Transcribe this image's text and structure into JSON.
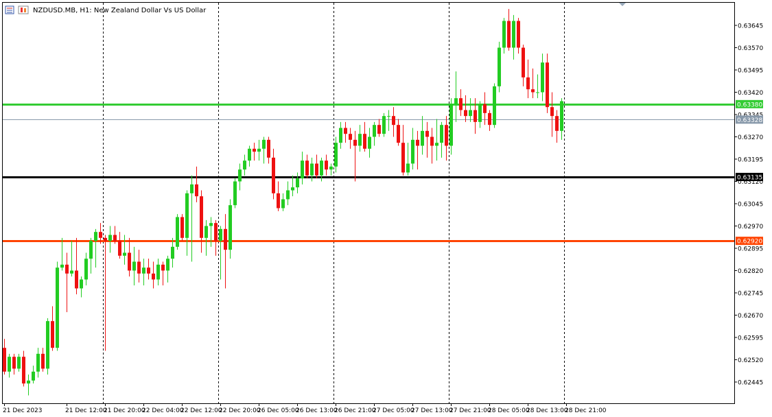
{
  "header": {
    "title": "NZDUSD.MB, H1:  New Zealand Dollar Vs US Dollar"
  },
  "colors": {
    "bull": "#22cc22",
    "bear": "#ee1111",
    "grid": "#000000",
    "level_green": "#33cc33",
    "level_black": "#000000",
    "level_orange": "#ff4400",
    "bid_line": "#8899aa",
    "bid_label_bg": "#8899aa"
  },
  "chart_data": {
    "type": "candlestick",
    "ylim": [
      0.62395,
      0.63695
    ],
    "y_ticks": [
      "0.63645",
      "0.63570",
      "0.63495",
      "0.63420",
      "0.63345",
      "0.63270",
      "0.63195",
      "0.63120",
      "0.63045",
      "0.62970",
      "0.62895",
      "0.62820",
      "0.62745",
      "0.62670",
      "0.62595",
      "0.62520",
      "0.62445"
    ],
    "x_labels": [
      "21 Dec 2023",
      "21 Dec 12:00",
      "21 Dec 20:00",
      "22 Dec 04:00",
      "22 Dec 12:00",
      "22 Dec 20:00",
      "26 Dec 05:00",
      "26 Dec 13:00",
      "26 Dec 21:00",
      "27 Dec 05:00",
      "27 Dec 13:00",
      "27 Dec 21:00",
      "28 Dec 05:00",
      "28 Dec 13:00",
      "28 Dec 21:00"
    ],
    "x_label_bar_index": [
      0,
      13,
      21,
      29,
      37,
      45,
      53,
      61,
      69,
      77,
      85,
      93,
      101,
      109,
      117
    ],
    "separator_bar_index": [
      20,
      44,
      68,
      92,
      116
    ],
    "levels": [
      {
        "label": "0.63380",
        "value": 0.6338,
        "color": "#33cc33"
      },
      {
        "label": "0.63135",
        "value": 0.63135,
        "color": "#000000"
      },
      {
        "label": "0.62920",
        "value": 0.6292,
        "color": "#ff4400"
      }
    ],
    "bid": {
      "label": "0.63328",
      "value": 0.63328
    },
    "candles": [
      [
        0.6256,
        0.6259,
        0.6247,
        0.6248
      ],
      [
        0.6248,
        0.6254,
        0.6246,
        0.6253
      ],
      [
        0.6253,
        0.6254,
        0.6247,
        0.6249
      ],
      [
        0.6249,
        0.6254,
        0.6248,
        0.6253
      ],
      [
        0.6253,
        0.6255,
        0.6243,
        0.6244
      ],
      [
        0.6244,
        0.6247,
        0.624,
        0.6245
      ],
      [
        0.6245,
        0.625,
        0.6244,
        0.6248
      ],
      [
        0.6248,
        0.6256,
        0.6246,
        0.6254
      ],
      [
        0.6254,
        0.6256,
        0.6248,
        0.6249
      ],
      [
        0.6249,
        0.6266,
        0.6247,
        0.6265
      ],
      [
        0.6265,
        0.627,
        0.6255,
        0.6256
      ],
      [
        0.6256,
        0.6285,
        0.6255,
        0.6283
      ],
      [
        0.6283,
        0.6293,
        0.6282,
        0.6284
      ],
      [
        0.6284,
        0.6288,
        0.6268,
        0.6281
      ],
      [
        0.6281,
        0.6292,
        0.628,
        0.6282
      ],
      [
        0.6282,
        0.6293,
        0.6274,
        0.6276
      ],
      [
        0.6276,
        0.628,
        0.6273,
        0.6279
      ],
      [
        0.6279,
        0.6288,
        0.6277,
        0.6286
      ],
      [
        0.6286,
        0.6293,
        0.6281,
        0.6292
      ],
      [
        0.6292,
        0.6296,
        0.6283,
        0.6295
      ],
      [
        0.6295,
        0.6298,
        0.6291,
        0.6293
      ],
      [
        0.6293,
        0.6294,
        0.6255,
        0.6292
      ],
      [
        0.6292,
        0.6297,
        0.6288,
        0.6294
      ],
      [
        0.6294,
        0.6297,
        0.6291,
        0.6292
      ],
      [
        0.6292,
        0.6295,
        0.6286,
        0.6287
      ],
      [
        0.6287,
        0.6294,
        0.6284,
        0.6288
      ],
      [
        0.6288,
        0.6293,
        0.628,
        0.6282
      ],
      [
        0.6282,
        0.629,
        0.6277,
        0.6285
      ],
      [
        0.6285,
        0.6289,
        0.6278,
        0.6281
      ],
      [
        0.6281,
        0.6286,
        0.6277,
        0.6283
      ],
      [
        0.6283,
        0.6286,
        0.6279,
        0.6281
      ],
      [
        0.6281,
        0.6285,
        0.6276,
        0.6279
      ],
      [
        0.6279,
        0.6286,
        0.6277,
        0.6284
      ],
      [
        0.6284,
        0.6285,
        0.6277,
        0.6282
      ],
      [
        0.6282,
        0.6287,
        0.6278,
        0.6286
      ],
      [
        0.6286,
        0.6293,
        0.6283,
        0.629
      ],
      [
        0.629,
        0.6301,
        0.6289,
        0.63
      ],
      [
        0.63,
        0.6301,
        0.6292,
        0.6293
      ],
      [
        0.6293,
        0.6309,
        0.6287,
        0.6308
      ],
      [
        0.6308,
        0.6314,
        0.6285,
        0.6311
      ],
      [
        0.6311,
        0.6317,
        0.6305,
        0.6307
      ],
      [
        0.6307,
        0.6309,
        0.6288,
        0.6293
      ],
      [
        0.6293,
        0.6299,
        0.6287,
        0.6297
      ],
      [
        0.6297,
        0.63,
        0.629,
        0.6298
      ],
      [
        0.6298,
        0.6299,
        0.6287,
        0.6292
      ],
      [
        0.6292,
        0.6297,
        0.6279,
        0.6296
      ],
      [
        0.6296,
        0.6301,
        0.6276,
        0.6289
      ],
      [
        0.6289,
        0.6306,
        0.6286,
        0.6304
      ],
      [
        0.6304,
        0.6313,
        0.6303,
        0.6312
      ],
      [
        0.6312,
        0.6318,
        0.6309,
        0.6316
      ],
      [
        0.6316,
        0.6321,
        0.6314,
        0.6319
      ],
      [
        0.6319,
        0.6324,
        0.6317,
        0.6323
      ],
      [
        0.6323,
        0.6325,
        0.6319,
        0.6322
      ],
      [
        0.6322,
        0.6326,
        0.6319,
        0.6323
      ],
      [
        0.6323,
        0.6327,
        0.6318,
        0.6326
      ],
      [
        0.6326,
        0.6327,
        0.6318,
        0.632
      ],
      [
        0.632,
        0.6323,
        0.6306,
        0.6308
      ],
      [
        0.6308,
        0.6312,
        0.6302,
        0.6303
      ],
      [
        0.6303,
        0.6308,
        0.6302,
        0.6306
      ],
      [
        0.6306,
        0.6312,
        0.6304,
        0.6309
      ],
      [
        0.6309,
        0.6314,
        0.6307,
        0.631
      ],
      [
        0.631,
        0.6315,
        0.6308,
        0.6313
      ],
      [
        0.6313,
        0.6322,
        0.6311,
        0.6319
      ],
      [
        0.6319,
        0.6321,
        0.6313,
        0.6314
      ],
      [
        0.6314,
        0.632,
        0.6312,
        0.6318
      ],
      [
        0.6318,
        0.6321,
        0.6313,
        0.6314
      ],
      [
        0.6314,
        0.632,
        0.6312,
        0.6319
      ],
      [
        0.6319,
        0.6321,
        0.6314,
        0.6316
      ],
      [
        0.6316,
        0.6318,
        0.6314,
        0.6317
      ],
      [
        0.6317,
        0.6327,
        0.6315,
        0.6325
      ],
      [
        0.6325,
        0.6332,
        0.6323,
        0.633
      ],
      [
        0.633,
        0.6332,
        0.6325,
        0.6328
      ],
      [
        0.6328,
        0.633,
        0.6323,
        0.6326
      ],
      [
        0.6326,
        0.6329,
        0.6312,
        0.6324
      ],
      [
        0.6324,
        0.6331,
        0.6322,
        0.6328
      ],
      [
        0.6328,
        0.6332,
        0.6322,
        0.6323
      ],
      [
        0.6323,
        0.633,
        0.632,
        0.6327
      ],
      [
        0.6327,
        0.6332,
        0.6324,
        0.6331
      ],
      [
        0.6331,
        0.6333,
        0.6327,
        0.6328
      ],
      [
        0.6328,
        0.6335,
        0.6327,
        0.6334
      ],
      [
        0.6334,
        0.6336,
        0.6329,
        0.6334
      ],
      [
        0.6334,
        0.6337,
        0.6327,
        0.6331
      ],
      [
        0.6331,
        0.6333,
        0.6324,
        0.6325
      ],
      [
        0.6325,
        0.6331,
        0.6314,
        0.6315
      ],
      [
        0.6315,
        0.6325,
        0.6314,
        0.6318
      ],
      [
        0.6318,
        0.633,
        0.6316,
        0.6326
      ],
      [
        0.6326,
        0.6329,
        0.6316,
        0.6324
      ],
      [
        0.6324,
        0.6334,
        0.6321,
        0.6329
      ],
      [
        0.6329,
        0.6332,
        0.632,
        0.6327
      ],
      [
        0.6327,
        0.633,
        0.6318,
        0.6324
      ],
      [
        0.6324,
        0.6333,
        0.6319,
        0.6325
      ],
      [
        0.6325,
        0.6332,
        0.632,
        0.6331
      ],
      [
        0.6331,
        0.6334,
        0.6319,
        0.6324
      ],
      [
        0.6324,
        0.634,
        0.6321,
        0.6338
      ],
      [
        0.6338,
        0.6349,
        0.6332,
        0.634
      ],
      [
        0.634,
        0.6343,
        0.6334,
        0.6336
      ],
      [
        0.6336,
        0.6341,
        0.6332,
        0.6334
      ],
      [
        0.6334,
        0.634,
        0.6332,
        0.6336
      ],
      [
        0.6336,
        0.634,
        0.6328,
        0.6332
      ],
      [
        0.6332,
        0.6339,
        0.633,
        0.6338
      ],
      [
        0.6338,
        0.6342,
        0.6331,
        0.6335
      ],
      [
        0.6335,
        0.6336,
        0.6329,
        0.6331
      ],
      [
        0.6331,
        0.6345,
        0.633,
        0.6344
      ],
      [
        0.6344,
        0.6359,
        0.6342,
        0.6357
      ],
      [
        0.6357,
        0.6367,
        0.6355,
        0.6366
      ],
      [
        0.6366,
        0.637,
        0.6356,
        0.6357
      ],
      [
        0.6357,
        0.6368,
        0.6353,
        0.6366
      ],
      [
        0.6366,
        0.6367,
        0.6355,
        0.6357
      ],
      [
        0.6357,
        0.6358,
        0.6344,
        0.6347
      ],
      [
        0.6347,
        0.6353,
        0.634,
        0.6343
      ],
      [
        0.6343,
        0.635,
        0.634,
        0.6342
      ],
      [
        0.6342,
        0.6348,
        0.634,
        0.6342
      ],
      [
        0.6342,
        0.6355,
        0.6339,
        0.6352
      ],
      [
        0.6352,
        0.6355,
        0.6335,
        0.6337
      ],
      [
        0.6337,
        0.6342,
        0.6327,
        0.6334
      ],
      [
        0.6334,
        0.6336,
        0.6325,
        0.6329
      ],
      [
        0.6329,
        0.634,
        0.6326,
        0.6339
      ]
    ]
  }
}
